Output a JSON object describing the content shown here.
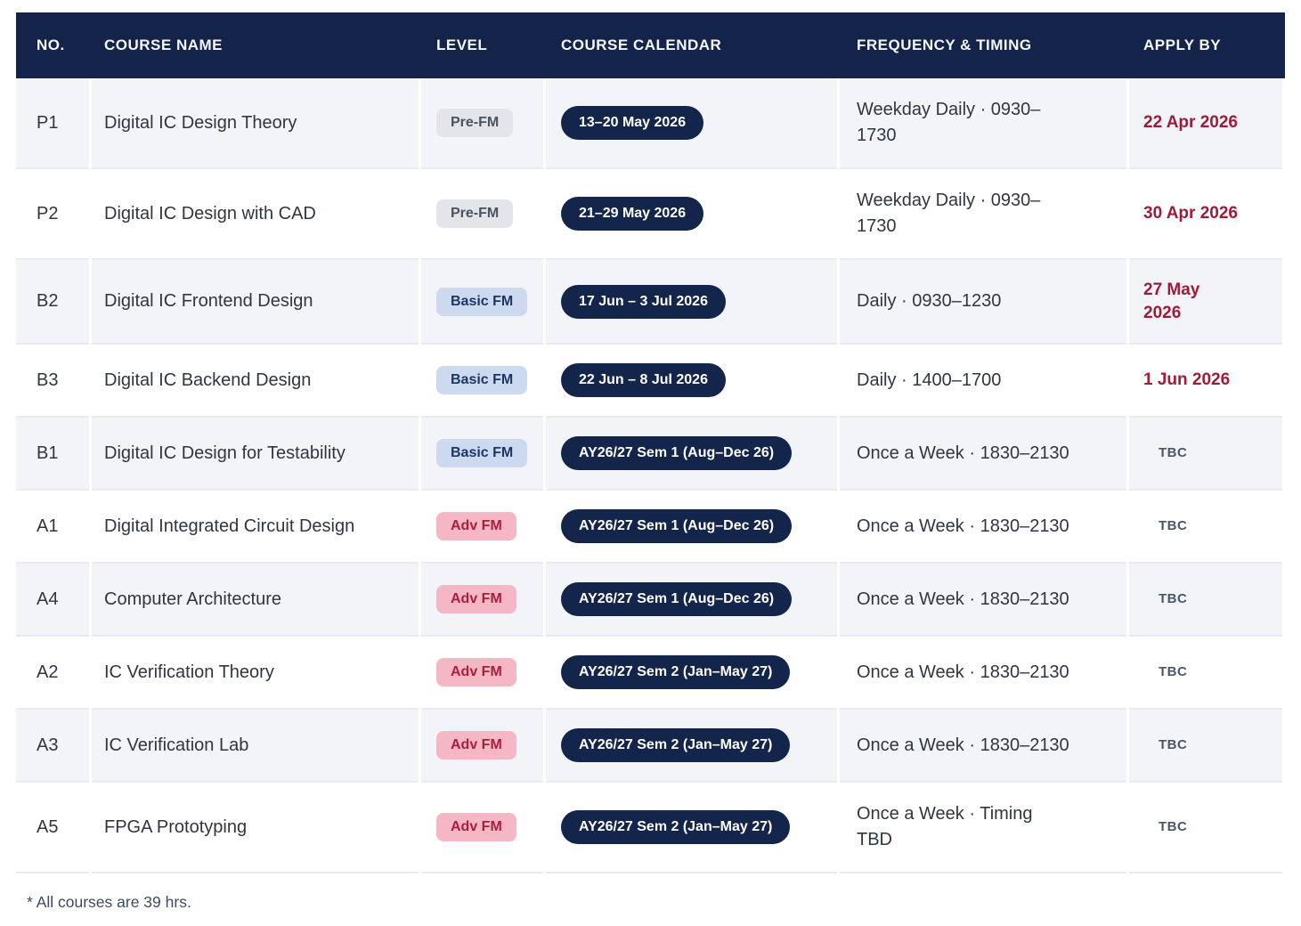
{
  "table": {
    "columns": [
      "NO.",
      "COURSE NAME",
      "LEVEL",
      "COURSE CALENDAR",
      "FREQUENCY & TIMING",
      "APPLY BY"
    ],
    "rows": [
      {
        "no": "P1",
        "name": "Digital IC Design Theory",
        "level": "Pre-FM",
        "level_type": "pre",
        "calendar": "13–20 May 2026",
        "frequency": "Weekday Daily · 0930–1730",
        "freq_wrap": true,
        "apply_by": "22 Apr 2026",
        "apply_type": "date",
        "apply_wrap": false
      },
      {
        "no": "P2",
        "name": "Digital IC Design with CAD",
        "level": "Pre-FM",
        "level_type": "pre",
        "calendar": "21–29 May 2026",
        "frequency": "Weekday Daily · 0930–1730",
        "freq_wrap": true,
        "apply_by": "30 Apr 2026",
        "apply_type": "date",
        "apply_wrap": false
      },
      {
        "no": "B2",
        "name": "Digital IC Frontend Design",
        "level": "Basic FM",
        "level_type": "basic",
        "calendar": "17 Jun – 3 Jul 2026",
        "frequency": "Daily · 0930–1230",
        "freq_wrap": false,
        "apply_by": "27 May 2026",
        "apply_type": "date",
        "apply_wrap": true
      },
      {
        "no": "B3",
        "name": "Digital IC Backend Design",
        "level": "Basic FM",
        "level_type": "basic",
        "calendar": "22 Jun – 8 Jul 2026",
        "frequency": "Daily · 1400–1700",
        "freq_wrap": false,
        "apply_by": "1 Jun 2026",
        "apply_type": "date",
        "apply_wrap": false
      },
      {
        "no": "B1",
        "name": "Digital IC Design for Testability",
        "level": "Basic FM",
        "level_type": "basic",
        "calendar": "AY26/27 Sem 1 (Aug–Dec 26)",
        "frequency": "Once a Week · 1830–2130",
        "freq_wrap": false,
        "apply_by": "TBC",
        "apply_type": "tbc",
        "apply_wrap": false
      },
      {
        "no": "A1",
        "name": "Digital Integrated Circuit Design",
        "level": "Adv FM",
        "level_type": "adv",
        "calendar": "AY26/27 Sem 1 (Aug–Dec 26)",
        "frequency": "Once a Week · 1830–2130",
        "freq_wrap": false,
        "apply_by": "TBC",
        "apply_type": "tbc",
        "apply_wrap": false
      },
      {
        "no": "A4",
        "name": "Computer Architecture",
        "level": "Adv FM",
        "level_type": "adv",
        "calendar": "AY26/27 Sem 1 (Aug–Dec 26)",
        "frequency": "Once a Week · 1830–2130",
        "freq_wrap": false,
        "apply_by": "TBC",
        "apply_type": "tbc",
        "apply_wrap": false
      },
      {
        "no": "A2",
        "name": "IC Verification Theory",
        "level": "Adv FM",
        "level_type": "adv",
        "calendar": "AY26/27 Sem 2 (Jan–May 27)",
        "frequency": "Once a Week · 1830–2130",
        "freq_wrap": false,
        "apply_by": "TBC",
        "apply_type": "tbc",
        "apply_wrap": false
      },
      {
        "no": "A3",
        "name": "IC Verification Lab",
        "level": "Adv FM",
        "level_type": "adv",
        "calendar": "AY26/27 Sem 2 (Jan–May 27)",
        "frequency": "Once a Week · 1830–2130",
        "freq_wrap": false,
        "apply_by": "TBC",
        "apply_type": "tbc",
        "apply_wrap": false
      },
      {
        "no": "A5",
        "name": "FPGA Prototyping",
        "level": "Adv FM",
        "level_type": "adv",
        "calendar": "AY26/27 Sem 2 (Jan–May 27)",
        "frequency": "Once a Week · Timing TBD",
        "freq_wrap": true,
        "apply_by": "TBC",
        "apply_type": "tbc",
        "apply_wrap": false
      }
    ]
  },
  "footer": {
    "note": "* All courses are 39 hrs."
  },
  "colors": {
    "header_bg": "#13234a",
    "pill_bg": "#14254c",
    "row_alt_bg": "#f2f4f8",
    "level_pre_bg": "#e3e5e8",
    "level_pre_text": "#49525f",
    "level_basic_bg": "#cdd9ef",
    "level_basic_text": "#1c3765",
    "level_adv_bg": "#f4b7c3",
    "level_adv_text": "#aa1e3e",
    "apply_date_text": "#a01a3a",
    "tbc_text": "#4a5769"
  }
}
